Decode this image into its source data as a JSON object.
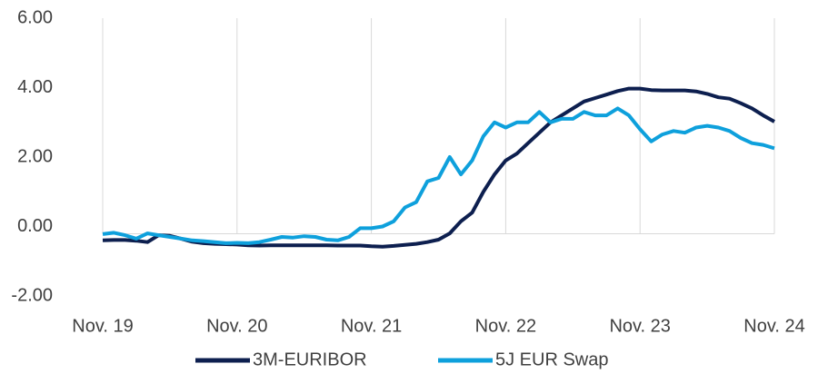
{
  "chart_data": {
    "type": "line",
    "categories": [
      "Nov. 19",
      null,
      null,
      null,
      null,
      null,
      null,
      null,
      null,
      null,
      null,
      null,
      "Nov. 20",
      null,
      null,
      null,
      null,
      null,
      null,
      null,
      null,
      null,
      null,
      null,
      "Nov. 21",
      null,
      null,
      null,
      null,
      null,
      null,
      null,
      null,
      null,
      null,
      null,
      "Nov. 22",
      null,
      null,
      null,
      null,
      null,
      null,
      null,
      null,
      null,
      null,
      null,
      "Nov. 23",
      null,
      null,
      null,
      null,
      null,
      null,
      null,
      null,
      null,
      null,
      null,
      "Nov. 24"
    ],
    "series": [
      {
        "name": "3M-EURIBOR",
        "color": "#0d1f4f",
        "values": [
          -0.4,
          -0.39,
          -0.39,
          -0.41,
          -0.45,
          -0.25,
          -0.27,
          -0.35,
          -0.44,
          -0.48,
          -0.5,
          -0.51,
          -0.52,
          -0.54,
          -0.55,
          -0.54,
          -0.54,
          -0.54,
          -0.54,
          -0.54,
          -0.54,
          -0.55,
          -0.55,
          -0.55,
          -0.57,
          -0.58,
          -0.56,
          -0.53,
          -0.5,
          -0.45,
          -0.38,
          -0.2,
          0.15,
          0.4,
          1.0,
          1.5,
          1.9,
          2.1,
          2.4,
          2.7,
          3.0,
          3.2,
          3.4,
          3.6,
          3.7,
          3.8,
          3.9,
          3.97,
          3.97,
          3.93,
          3.92,
          3.92,
          3.92,
          3.89,
          3.82,
          3.72,
          3.68,
          3.55,
          3.4,
          3.2,
          3.02
        ]
      },
      {
        "name": "5J EUR Swap",
        "color": "#0ea0dc",
        "values": [
          -0.22,
          -0.18,
          -0.25,
          -0.35,
          -0.2,
          -0.25,
          -0.3,
          -0.35,
          -0.4,
          -0.42,
          -0.45,
          -0.48,
          -0.47,
          -0.48,
          -0.45,
          -0.38,
          -0.3,
          -0.32,
          -0.28,
          -0.3,
          -0.38,
          -0.4,
          -0.3,
          -0.05,
          -0.05,
          0.0,
          0.15,
          0.55,
          0.7,
          1.3,
          1.4,
          2.0,
          1.5,
          1.9,
          2.6,
          3.0,
          2.85,
          3.0,
          3.0,
          3.3,
          3.0,
          3.1,
          3.1,
          3.3,
          3.2,
          3.2,
          3.4,
          3.2,
          2.8,
          2.45,
          2.65,
          2.75,
          2.7,
          2.85,
          2.9,
          2.85,
          2.75,
          2.55,
          2.4,
          2.35,
          2.25
        ]
      }
    ],
    "ylim": [
      -2,
      6
    ],
    "yticks": [
      {
        "value": -2,
        "label": "-2.00"
      },
      {
        "value": 0,
        "label": "0.00"
      },
      {
        "value": 2,
        "label": "2.00"
      },
      {
        "value": 4,
        "label": "4.00"
      },
      {
        "value": 6,
        "label": "6.00"
      }
    ],
    "grid": true,
    "legend": "bottom"
  }
}
